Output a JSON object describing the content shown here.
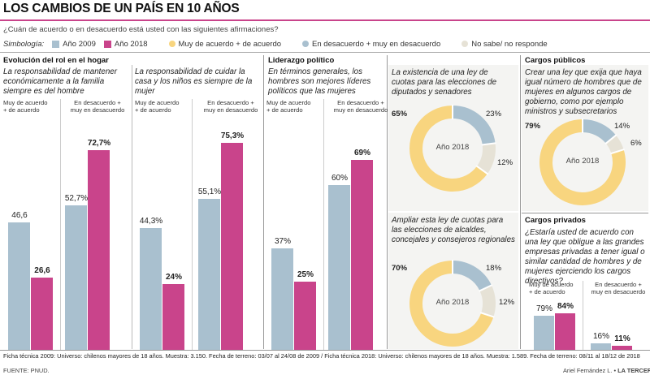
{
  "title": "LOS CAMBIOS DE UN PAÍS EN 10 AÑOS",
  "subtitle": "¿Cuán de acuerdo o en desacuerdo está usted con las siguientes afirmaciones?",
  "legend": {
    "label": "Simbología:",
    "year2009": "Año 2009",
    "year2018": "Año 2018",
    "agree": "Muy de acuerdo + de acuerdo",
    "disagree": "En desacuerdo + muy en desacuerdo",
    "nsnr": "No sabe/ no responde"
  },
  "colors": {
    "y2009": "#a9c0cf",
    "y2018": "#c9448b",
    "agree": "#f8d57f",
    "disagree": "#a9c0cf",
    "nsnr": "#e6e2d6"
  },
  "sections": {
    "evolucion": "Evolución del rol en el hogar",
    "liderazgo": "Liderazgo político",
    "cargos_publicos": "Cargos públicos",
    "cargos_privados": "Cargos privados"
  },
  "group_labels": {
    "agree": "Muy de acuerdo\n+ de acuerdo",
    "disagree": "En desacuerdo +\nmuy en desacuerdo"
  },
  "footnote": "Ficha técnica 2009: Universo: chilenos mayores de 18 años. Muestra: 3.150. Fecha de terreno: 03/07 al 24/08 de 2009 / Ficha técnica 2018: Universo: chilenos mayores de 18 años. Muestra: 1.589. Fecha de terreno: 08/11 al 18/12 de 2018",
  "source": "FUENTE: PNUD.",
  "credit_author": "Ariel Fernández L. • ",
  "credit_outlet": "LA TERCERA",
  "chart_data": [
    {
      "type": "bar",
      "title": "La responsabilidad de mantener económicamente a la familia siempre es del hombre",
      "categories": [
        "Muy de acuerdo + de acuerdo",
        "En desacuerdo + muy en desacuerdo"
      ],
      "series": [
        {
          "name": "Año 2009",
          "values": [
            46.6,
            52.7
          ],
          "labels": [
            "46,6",
            "52,7%"
          ]
        },
        {
          "name": "Año 2018",
          "values": [
            26.6,
            72.7
          ],
          "labels": [
            "26,6",
            "72,7%"
          ]
        }
      ]
    },
    {
      "type": "bar",
      "title": "La responsabilidad de cuidar la casa y los niños es siempre de la mujer",
      "categories": [
        "Muy de acuerdo + de acuerdo",
        "En desacuerdo + muy en desacuerdo"
      ],
      "series": [
        {
          "name": "Año 2009",
          "values": [
            44.3,
            55.1
          ],
          "labels": [
            "44,3%",
            "55,1%"
          ]
        },
        {
          "name": "Año 2018",
          "values": [
            24,
            75.3
          ],
          "labels": [
            "24%",
            "75,3%"
          ]
        }
      ]
    },
    {
      "type": "bar",
      "title": "En términos generales, los hombres son mejores líderes políticos que las mujeres",
      "categories": [
        "Muy de acuerdo + de acuerdo",
        "En desacuerdo + muy en desacuerdo"
      ],
      "series": [
        {
          "name": "Año 2009",
          "values": [
            37,
            60
          ],
          "labels": [
            "37%",
            "60%"
          ]
        },
        {
          "name": "Año 2018",
          "values": [
            25,
            69
          ],
          "labels": [
            "25%",
            "69%"
          ]
        }
      ]
    },
    {
      "type": "pie",
      "title": "La existencia de una ley de cuotas para las elecciones de diputados y senadores",
      "center_label": "Año 2018",
      "categories": [
        "Muy de acuerdo + de acuerdo",
        "En desacuerdo + muy en desacuerdo",
        "No sabe/ no responde"
      ],
      "values": [
        65,
        23,
        12
      ],
      "labels": [
        "65%",
        "23%",
        "12%"
      ]
    },
    {
      "type": "pie",
      "title": "Ampliar esta ley de cuotas para las elecciones de alcaldes, concejales y consejeros regionales",
      "center_label": "Año 2018",
      "categories": [
        "Muy de acuerdo + de acuerdo",
        "En desacuerdo + muy en desacuerdo",
        "No sabe/ no responde"
      ],
      "values": [
        70,
        18,
        12
      ],
      "labels": [
        "70%",
        "18%",
        "12%"
      ]
    },
    {
      "type": "pie",
      "title": "Crear una ley que exija que haya igual número de hombres que de mujeres en algunos cargos de gobierno, como por ejemplo ministros y subsecretarios",
      "center_label": "Año 2018",
      "categories": [
        "Muy de acuerdo + de acuerdo",
        "En desacuerdo + muy en desacuerdo",
        "No sabe/ no responde"
      ],
      "values": [
        79,
        14,
        6
      ],
      "labels": [
        "79%",
        "14%",
        "6%"
      ]
    },
    {
      "type": "bar",
      "title": "¿Estaría usted de acuerdo con una ley que obligue a las grandes empresas privadas a tener igual o similar cantidad de hombres y de mujeres ejerciendo los cargos directivos?",
      "categories": [
        "Muy de acuerdo + de acuerdo",
        "En desacuerdo + muy en desacuerdo"
      ],
      "series": [
        {
          "name": "Año 2009",
          "values": [
            79,
            16
          ],
          "labels": [
            "79%",
            "16%"
          ]
        },
        {
          "name": "Año 2018",
          "values": [
            84,
            11
          ],
          "labels": [
            "84%",
            "11%"
          ]
        }
      ]
    }
  ]
}
